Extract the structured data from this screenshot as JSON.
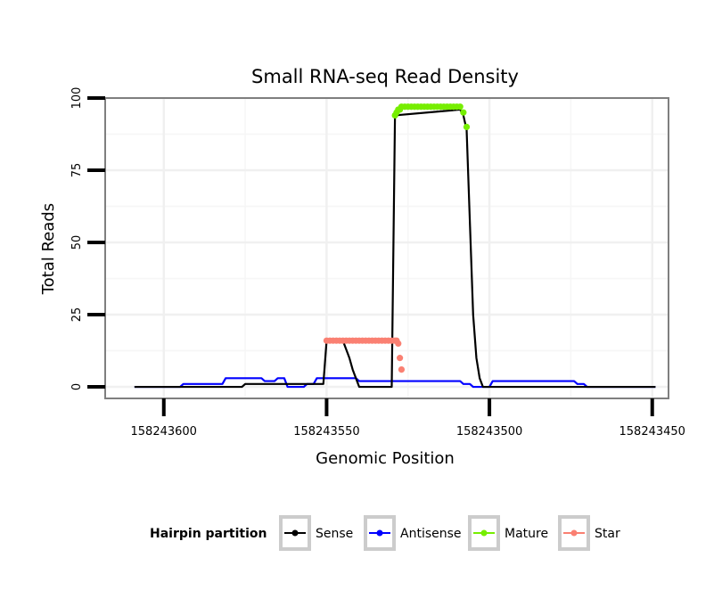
{
  "chart_data": {
    "type": "line",
    "title": "Small RNA-seq Read Density",
    "xlabel": "Genomic Position",
    "ylabel": "Total Reads",
    "xlim": [
      158243618,
      158243445
    ],
    "ylim": [
      -4,
      100
    ],
    "x_reversed": true,
    "x_ticks": [
      158243600,
      158243550,
      158243500,
      158243450
    ],
    "x_tick_labels": [
      "158243600",
      "158243550",
      "158243500",
      "158243450"
    ],
    "y_ticks": [
      0,
      25,
      50,
      75,
      100
    ],
    "y_tick_labels": [
      "0",
      "25",
      "50",
      "75",
      "100"
    ],
    "grid": true,
    "legend": {
      "title": "Hairpin partition",
      "placement": "bottom",
      "entries": [
        "Sense",
        "Antisense",
        "Mature",
        "Star"
      ]
    },
    "series": [
      {
        "name": "Sense",
        "color": "#000000",
        "line": true,
        "points": false,
        "x": [
          158243609,
          158243576,
          158243575,
          158243551,
          158243550,
          158243545,
          158243544,
          158243543,
          158243542,
          158243541,
          158243540,
          158243530,
          158243529,
          158243509,
          158243508,
          158243507,
          158243505,
          158243504,
          158243503,
          158243502,
          158243449
        ],
        "y": [
          0,
          0,
          1,
          1,
          16,
          16,
          13,
          10,
          6,
          3,
          0,
          0,
          94,
          96,
          94,
          89,
          25,
          10,
          3,
          0,
          0
        ]
      },
      {
        "name": "Antisense",
        "color": "#0000ff",
        "line": true,
        "points": false,
        "x": [
          158243609,
          158243595,
          158243594,
          158243582,
          158243581,
          158243570,
          158243569,
          158243566,
          158243565,
          158243563,
          158243562,
          158243557,
          158243556,
          158243554,
          158243553,
          158243541,
          158243540,
          158243530,
          158243529,
          158243509,
          158243508,
          158243506,
          158243505,
          158243500,
          158243499,
          158243474,
          158243473,
          158243471,
          158243470,
          158243449
        ],
        "y": [
          0,
          0,
          1,
          1,
          3,
          3,
          2,
          2,
          3,
          3,
          0,
          0,
          1,
          1,
          3,
          3,
          2,
          2,
          2,
          2,
          1,
          1,
          0,
          0,
          2,
          2,
          1,
          1,
          0,
          0
        ]
      },
      {
        "name": "Mature",
        "color": "#76ee00",
        "line": false,
        "points": true,
        "x": [
          158243529,
          158243528.5,
          158243528,
          158243527.5,
          158243527,
          158243526,
          158243525,
          158243524,
          158243523,
          158243522,
          158243521,
          158243520,
          158243519,
          158243518,
          158243517,
          158243516,
          158243515,
          158243514,
          158243513,
          158243512,
          158243511,
          158243510,
          158243509,
          158243508,
          158243507
        ],
        "y": [
          94,
          95,
          96,
          96,
          97,
          97,
          97,
          97,
          97,
          97,
          97,
          97,
          97,
          97,
          97,
          97,
          97,
          97,
          97,
          97,
          97,
          97,
          97,
          95,
          90
        ]
      },
      {
        "name": "Star",
        "color": "#fa8072",
        "line": false,
        "points": true,
        "x": [
          158243550,
          158243549,
          158243548,
          158243547,
          158243546,
          158243545,
          158243544,
          158243543,
          158243542,
          158243541,
          158243540,
          158243539,
          158243538,
          158243537,
          158243536,
          158243535,
          158243534,
          158243533,
          158243532,
          158243531,
          158243530,
          158243529,
          158243528.5,
          158243528,
          158243527.5,
          158243527
        ],
        "y": [
          16,
          16,
          16,
          16,
          16,
          16,
          16,
          16,
          16,
          16,
          16,
          16,
          16,
          16,
          16,
          16,
          16,
          16,
          16,
          16,
          16,
          16,
          16,
          15,
          10,
          6
        ]
      }
    ]
  }
}
